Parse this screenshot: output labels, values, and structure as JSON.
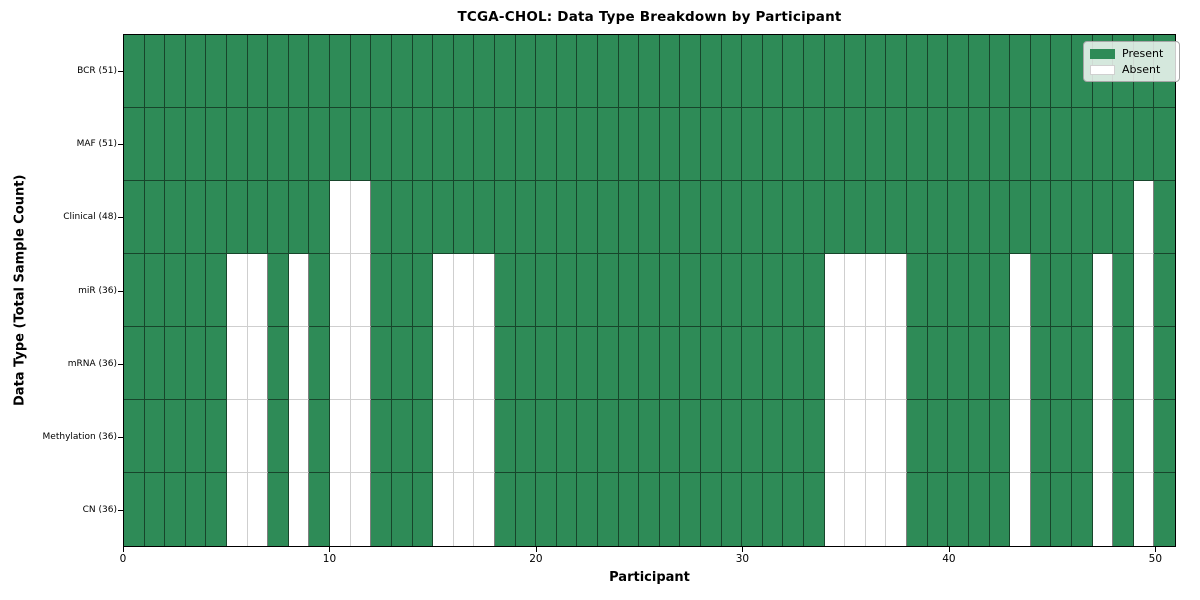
{
  "colors": {
    "present": "#2E8B57",
    "absent": "#FFFFFF",
    "plot_border": "#000000",
    "grid_line_on_present": "rgba(0,0,0,0.5)",
    "grid_line_on_absent": "#cfcfcf",
    "legend_border": "#a6a6a6"
  },
  "chart_data": {
    "type": "heatmap",
    "title": "TCGA-CHOL: Data Type Breakdown by Participant",
    "xlabel": "Participant",
    "ylabel": "Data Type (Total Sample Count)",
    "x_ticks": [
      0,
      10,
      20,
      30,
      40,
      50
    ],
    "x_range": [
      0,
      51
    ],
    "n_participants": 51,
    "grid": true,
    "legend": {
      "position": "upper right",
      "entries": [
        {
          "label": "Present",
          "color": "#2E8B57"
        },
        {
          "label": "Absent",
          "color": "#FFFFFF"
        }
      ]
    },
    "rows": [
      {
        "label": "BCR (51)",
        "data_type": "BCR",
        "total_samples": 51,
        "absent_participants": []
      },
      {
        "label": "MAF (51)",
        "data_type": "MAF",
        "total_samples": 51,
        "absent_participants": []
      },
      {
        "label": "Clinical (48)",
        "data_type": "Clinical",
        "total_samples": 48,
        "absent_participants": [
          10,
          11,
          49
        ]
      },
      {
        "label": "miR (36)",
        "data_type": "miR",
        "total_samples": 36,
        "absent_participants": [
          5,
          6,
          8,
          10,
          11,
          15,
          16,
          17,
          34,
          35,
          36,
          37,
          43,
          47,
          49
        ]
      },
      {
        "label": "mRNA (36)",
        "data_type": "mRNA",
        "total_samples": 36,
        "absent_participants": [
          5,
          6,
          8,
          10,
          11,
          15,
          16,
          17,
          34,
          35,
          36,
          37,
          43,
          47,
          49
        ]
      },
      {
        "label": "Methylation (36)",
        "data_type": "Methylation",
        "total_samples": 36,
        "absent_participants": [
          5,
          6,
          8,
          10,
          11,
          15,
          16,
          17,
          34,
          35,
          36,
          37,
          43,
          47,
          49
        ]
      },
      {
        "label": "CN (36)",
        "data_type": "CN",
        "total_samples": 36,
        "absent_participants": [
          5,
          6,
          8,
          10,
          11,
          15,
          16,
          17,
          34,
          35,
          36,
          37,
          43,
          47,
          49
        ]
      }
    ]
  }
}
